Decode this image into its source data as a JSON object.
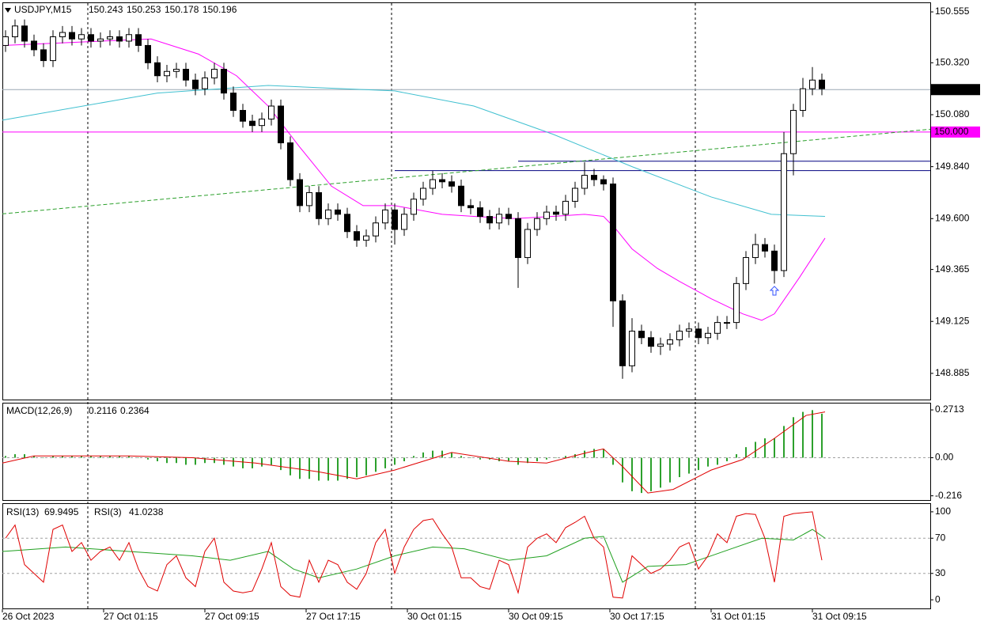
{
  "chart_data": [
    {
      "type": "candlestick",
      "symbol": "USDJPY,M15",
      "header_values": [
        150.243,
        150.253,
        150.178,
        150.196
      ],
      "xlim": [
        0,
        293.25
      ],
      "ylim": [
        148.764,
        150.599
      ],
      "yticks": [
        150.555,
        {
          "value": 150.32,
          "label": "150.320"
        },
        {
          "value": 150.08,
          "label": "150.080"
        },
        {
          "value": 149.84,
          "label": "149.840"
        },
        {
          "value": 149.6,
          "label": "149.600"
        },
        149.365,
        149.125,
        148.885
      ],
      "xticks": [
        {
          "value": 0,
          "label": "26 Oct 2023"
        },
        {
          "value": 32,
          "label": "27 Oct 01:15"
        },
        {
          "value": 64,
          "label": "27 Oct 09:15"
        },
        {
          "value": 96,
          "label": "27 Oct 17:15"
        },
        {
          "value": 128,
          "label": "30 Oct 01:15"
        },
        {
          "value": 160,
          "label": "30 Oct 09:15"
        },
        {
          "value": 192,
          "label": "30 Oct 17:15"
        },
        {
          "value": 224,
          "label": "31 Oct 01:15"
        },
        {
          "value": 256,
          "label": "31 Oct 09:15"
        }
      ],
      "vlines": [
        27,
        123,
        219
      ],
      "up_color": "#ffffff",
      "down_color": "#000000",
      "x": [
        1,
        4,
        7,
        10,
        13,
        16,
        19,
        22,
        25,
        28,
        31,
        34,
        37,
        40,
        43,
        46,
        49,
        52,
        55,
        58,
        61,
        64,
        67,
        70,
        73,
        76,
        79,
        82,
        85,
        88,
        91,
        94,
        97,
        100,
        103,
        106,
        109,
        112,
        115,
        118,
        121,
        124,
        127,
        130,
        133,
        136,
        139,
        142,
        145,
        148,
        151,
        154,
        157,
        160,
        163,
        166,
        169,
        172,
        175,
        178,
        181,
        184,
        187,
        190,
        193,
        196,
        199,
        202,
        205,
        208,
        211,
        214,
        217,
        220,
        223,
        226,
        229,
        232,
        235,
        238,
        241,
        244,
        247,
        250,
        253,
        256,
        259
      ],
      "open": [
        150.4,
        150.44,
        150.49,
        150.42,
        150.38,
        150.33,
        150.44,
        150.46,
        150.43,
        150.45,
        150.42,
        150.43,
        150.44,
        150.42,
        150.45,
        150.4,
        150.32,
        150.26,
        150.28,
        150.29,
        150.24,
        150.2,
        150.25,
        150.29,
        150.18,
        150.1,
        150.05,
        150.03,
        150.06,
        150.12,
        149.95,
        149.78,
        149.66,
        149.72,
        149.6,
        149.64,
        149.62,
        149.54,
        149.5,
        149.52,
        149.58,
        149.64,
        149.55,
        149.62,
        149.69,
        149.74,
        149.78,
        149.77,
        149.75,
        149.66,
        149.65,
        149.61,
        149.58,
        149.62,
        149.6,
        149.42,
        149.55,
        149.6,
        149.63,
        149.62,
        149.68,
        149.74,
        149.8,
        149.78,
        149.76,
        149.22,
        148.92,
        149.08,
        149.05,
        149.01,
        149.02,
        149.04,
        149.08,
        149.09,
        149.05,
        149.07,
        149.12,
        149.12,
        149.3,
        149.42,
        149.48,
        149.45,
        149.36,
        149.9,
        150.1,
        150.2,
        150.24
      ],
      "high": [
        150.47,
        150.52,
        150.52,
        150.45,
        150.41,
        150.47,
        150.49,
        150.49,
        150.48,
        150.48,
        150.46,
        150.47,
        150.47,
        150.48,
        150.48,
        150.43,
        150.35,
        150.31,
        150.32,
        150.32,
        150.27,
        150.28,
        150.32,
        150.32,
        150.21,
        150.13,
        150.08,
        150.09,
        150.15,
        150.15,
        149.98,
        149.81,
        149.75,
        149.75,
        149.67,
        149.67,
        149.65,
        149.57,
        149.55,
        149.61,
        149.67,
        149.67,
        149.65,
        149.72,
        149.77,
        149.82,
        149.81,
        149.8,
        149.78,
        149.69,
        149.68,
        149.64,
        149.65,
        149.65,
        149.63,
        149.58,
        149.63,
        149.66,
        149.66,
        149.71,
        149.77,
        149.86,
        149.83,
        149.8,
        149.79,
        149.25,
        149.14,
        149.11,
        149.08,
        149.05,
        149.07,
        149.11,
        149.12,
        149.12,
        149.1,
        149.15,
        149.15,
        149.33,
        149.45,
        149.53,
        149.51,
        149.48,
        150.0,
        150.13,
        150.25,
        150.3,
        150.27
      ],
      "low": [
        150.37,
        150.41,
        150.39,
        150.35,
        150.3,
        150.3,
        150.41,
        150.4,
        150.4,
        150.39,
        150.39,
        150.4,
        150.39,
        150.39,
        150.37,
        150.29,
        150.23,
        150.23,
        150.25,
        150.21,
        150.17,
        150.17,
        150.22,
        150.15,
        150.07,
        150.02,
        150.0,
        150.0,
        150.03,
        149.92,
        149.75,
        149.63,
        149.63,
        149.57,
        149.57,
        149.59,
        149.51,
        149.47,
        149.47,
        149.49,
        149.55,
        149.48,
        149.52,
        149.59,
        149.66,
        149.71,
        149.74,
        149.72,
        149.63,
        149.62,
        149.58,
        149.55,
        149.55,
        149.57,
        149.28,
        149.39,
        149.52,
        149.57,
        149.59,
        149.59,
        149.65,
        149.71,
        149.75,
        149.73,
        149.1,
        148.86,
        148.89,
        149.02,
        148.98,
        148.97,
        148.99,
        149.01,
        149.05,
        149.02,
        149.02,
        149.04,
        149.09,
        149.09,
        149.27,
        149.39,
        149.42,
        149.3,
        149.33,
        149.8,
        150.07,
        150.17,
        150.17
      ],
      "close": [
        150.44,
        150.49,
        150.42,
        150.38,
        150.33,
        150.44,
        150.46,
        150.43,
        150.45,
        150.42,
        150.43,
        150.44,
        150.42,
        150.45,
        150.4,
        150.32,
        150.26,
        150.28,
        150.29,
        150.24,
        150.2,
        150.25,
        150.29,
        150.18,
        150.1,
        150.05,
        150.03,
        150.06,
        150.12,
        149.95,
        149.78,
        149.66,
        149.72,
        149.6,
        149.64,
        149.62,
        149.54,
        149.5,
        149.52,
        149.58,
        149.64,
        149.55,
        149.62,
        149.69,
        149.74,
        149.78,
        149.77,
        149.75,
        149.66,
        149.65,
        149.61,
        149.58,
        149.62,
        149.6,
        149.42,
        149.55,
        149.6,
        149.63,
        149.62,
        149.68,
        149.74,
        149.8,
        149.78,
        149.76,
        149.22,
        148.92,
        149.08,
        149.05,
        149.01,
        149.02,
        149.04,
        149.08,
        149.09,
        149.05,
        149.07,
        149.12,
        149.12,
        149.3,
        149.42,
        149.48,
        149.45,
        149.36,
        149.9,
        150.1,
        150.2,
        150.24,
        150.2
      ],
      "series": [
        {
          "color": "#ff00ff",
          "x": [
            0,
            47,
            62,
            74,
            84,
            94,
            104,
            114,
            124,
            139,
            149,
            162,
            174,
            184,
            190,
            194,
            199,
            207,
            214,
            224,
            234,
            240,
            244,
            252,
            260
          ],
          "values": [
            150.4,
            150.43,
            150.36,
            150.26,
            150.12,
            149.93,
            149.75,
            149.66,
            149.66,
            149.62,
            149.61,
            149.6,
            149.61,
            149.62,
            149.61,
            149.55,
            149.46,
            149.37,
            149.31,
            149.23,
            149.16,
            149.13,
            149.16,
            149.33,
            149.51
          ]
        },
        {
          "color": "#40c0d0",
          "x": [
            0,
            49,
            84,
            124,
            149,
            174,
            199,
            224,
            243,
            260
          ],
          "values": [
            150.055,
            150.18,
            150.215,
            150.19,
            150.12,
            149.99,
            149.84,
            149.7,
            149.62,
            149.61
          ]
        },
        {
          "color": "#2ca02c",
          "dashed": true,
          "x": [
            0,
            293.25
          ],
          "values": [
            149.622,
            150.013
          ]
        }
      ],
      "hlines": [
        {
          "value": 150.196,
          "color": "#9aa8b4",
          "tag_color": "#000000"
        },
        {
          "value": 150,
          "label": "150.000",
          "color": "#ff00ff",
          "tag_color": "#ff00ff"
        },
        {
          "value": 149.865,
          "x_start": 163,
          "color": "#000080"
        },
        {
          "value": 149.822,
          "x_start": 124,
          "color": "#000080"
        }
      ],
      "arrow": {
        "x": 244,
        "value": 149.265,
        "color": "#3050ff"
      }
    },
    {
      "type": "macd",
      "label": "MACD(12,26,9)",
      "header_values": [
        0.2116,
        0.2364
      ],
      "xlim": [
        0,
        293.25
      ],
      "ylim": [
        -0.24,
        0.312
      ],
      "yticks": [
        0.2713,
        {
          "value": 0,
          "label": "0.00"
        },
        -0.216
      ],
      "levels": [
        0
      ],
      "hist_color": "#2ca02c",
      "histogram": [
        0.01,
        0.02,
        0.02,
        0.01,
        0.0,
        0.01,
        0.01,
        0.01,
        0.01,
        0.01,
        0.01,
        0.01,
        0.01,
        0.01,
        0.0,
        -0.01,
        -0.02,
        -0.03,
        -0.03,
        -0.04,
        -0.04,
        -0.03,
        -0.03,
        -0.04,
        -0.05,
        -0.06,
        -0.06,
        -0.05,
        -0.04,
        -0.07,
        -0.1,
        -0.12,
        -0.12,
        -0.13,
        -0.13,
        -0.13,
        -0.12,
        -0.11,
        -0.1,
        -0.08,
        -0.06,
        -0.04,
        -0.02,
        0.01,
        0.03,
        0.04,
        0.04,
        0.03,
        0.01,
        0.0,
        -0.01,
        -0.01,
        -0.02,
        -0.02,
        -0.04,
        -0.03,
        -0.02,
        -0.01,
        0.0,
        0.01,
        0.02,
        0.04,
        0.05,
        0.05,
        -0.04,
        -0.14,
        -0.19,
        -0.2,
        -0.19,
        -0.17,
        -0.14,
        -0.11,
        -0.09,
        -0.07,
        -0.05,
        -0.04,
        -0.02,
        0.02,
        0.06,
        0.09,
        0.11,
        0.11,
        0.18,
        0.23,
        0.26,
        0.27,
        0.25
      ],
      "series": [
        {
          "color": "#e00000",
          "x": [
            0,
            10,
            40,
            60,
            80,
            100,
            112,
            124,
            142,
            160,
            172,
            185,
            190,
            196,
            204,
            212,
            224,
            234,
            244,
            254,
            260
          ],
          "values": [
            -0.03,
            0.01,
            0.01,
            0.0,
            -0.03,
            -0.08,
            -0.12,
            -0.07,
            0.03,
            -0.02,
            -0.03,
            0.03,
            0.05,
            -0.05,
            -0.2,
            -0.18,
            -0.07,
            -0.01,
            0.11,
            0.24,
            0.26
          ]
        }
      ]
    },
    {
      "type": "rsi",
      "xlim": [
        0,
        293.25
      ],
      "ylim": [
        -9.8,
        109.8
      ],
      "yticks": [
        100,
        70,
        30,
        0
      ],
      "levels": [
        70,
        30
      ],
      "series": [
        {
          "name": "RSI(13)",
          "header_value": 69.9495,
          "color": "#20a020",
          "x": [
            0,
            20,
            40,
            60,
            72,
            84,
            92,
            100,
            112,
            124,
            136,
            146,
            160,
            172,
            184,
            190,
            196,
            204,
            216,
            228,
            240,
            250,
            256,
            260
          ],
          "values": [
            55,
            60,
            55,
            50,
            45,
            55,
            35,
            25,
            35,
            50,
            60,
            58,
            45,
            50,
            70,
            72,
            20,
            38,
            40,
            55,
            70,
            68,
            80,
            70
          ]
        },
        {
          "name": "RSI(3)",
          "header_value": 41.0238,
          "color": "#e00000",
          "values": [
            70,
            85,
            40,
            30,
            20,
            80,
            85,
            55,
            65,
            45,
            55,
            60,
            45,
            65,
            35,
            15,
            10,
            40,
            50,
            25,
            15,
            55,
            70,
            20,
            10,
            8,
            10,
            35,
            65,
            15,
            5,
            3,
            45,
            20,
            45,
            40,
            20,
            12,
            30,
            65,
            80,
            30,
            60,
            80,
            90,
            92,
            75,
            60,
            25,
            25,
            15,
            12,
            45,
            40,
            8,
            60,
            70,
            75,
            65,
            82,
            88,
            95,
            70,
            60,
            3,
            2,
            50,
            40,
            30,
            35,
            45,
            60,
            65,
            35,
            50,
            75,
            65,
            95,
            98,
            97,
            70,
            20,
            95,
            98,
            99,
            100,
            45
          ]
        }
      ]
    }
  ]
}
